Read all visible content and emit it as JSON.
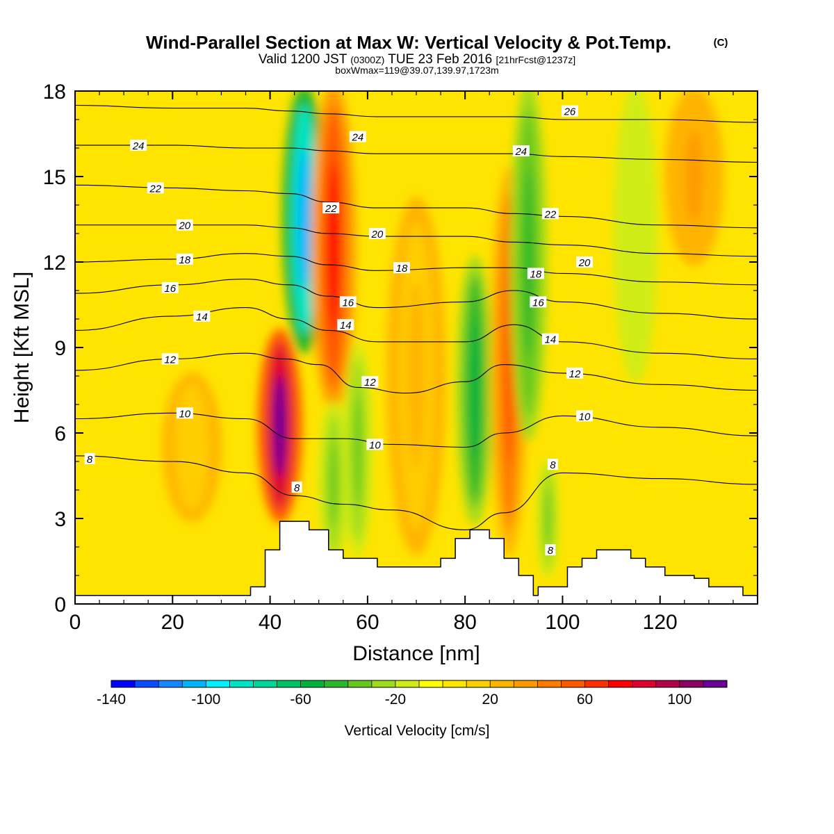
{
  "header": {
    "title_main": "Wind-Parallel Section at Max W: Vertical Velocity & Pot.Temp.",
    "title_mark": "(C)",
    "sub_a": "Valid 1200 JST",
    "sub_b": "(0300Z)",
    "sub_c": "TUE 23 Feb 2016",
    "sub_d": "[21hrFcst@1237z]",
    "sub2": "boxWmax=119@39.07,139.97,1723m"
  },
  "chart_data": {
    "type": "heatmap",
    "xlabel": "Distance [nm]",
    "ylabel": "Height [Kft MSL]",
    "xlim": [
      0,
      140
    ],
    "ylim": [
      0,
      18
    ],
    "x_ticks": [
      0,
      20,
      40,
      60,
      80,
      100,
      120
    ],
    "y_ticks": [
      0,
      3,
      6,
      9,
      12,
      15,
      18
    ],
    "colorbar": {
      "label": "Vertical Velocity [cm/s]",
      "min": -140,
      "max": 120,
      "step": 10,
      "tick_values": [
        -140,
        -100,
        -60,
        -20,
        20,
        60,
        100
      ],
      "colors": [
        "#0000ff",
        "#0a4cff",
        "#1486ff",
        "#00b4ff",
        "#00f0ff",
        "#00e4c4",
        "#00d696",
        "#00c46a",
        "#00b23c",
        "#2ab82a",
        "#66c81e",
        "#9edb1e",
        "#d0ec19",
        "#ffff00",
        "#ffe400",
        "#ffce00",
        "#ffb400",
        "#ff9a00",
        "#ff7a00",
        "#ff5a00",
        "#ff3000",
        "#ff0000",
        "#dd0030",
        "#b40046",
        "#8c0064",
        "#680096"
      ]
    },
    "vertical_velocity_features": [
      {
        "x": 42,
        "z_bottom": 3,
        "z_top": 9.5,
        "width": 3,
        "peak": 119
      },
      {
        "x": 47,
        "z_bottom": 9,
        "z_top": 18,
        "width": 3,
        "peak": -110
      },
      {
        "x": 53,
        "z_bottom": 7,
        "z_top": 18,
        "width": 3,
        "peak": 75
      },
      {
        "x": 58,
        "z_bottom": 1.8,
        "z_top": 9,
        "width": 2,
        "peak": -40
      },
      {
        "x": 53,
        "z_bottom": 1.5,
        "z_top": 7,
        "width": 2,
        "peak": -35
      },
      {
        "x": 82,
        "z_bottom": 3,
        "z_top": 12,
        "width": 2.5,
        "peak": -55
      },
      {
        "x": 89,
        "z_bottom": 2,
        "z_top": 15,
        "width": 2.5,
        "peak": 55
      },
      {
        "x": 93,
        "z_bottom": 6,
        "z_top": 18,
        "width": 2.5,
        "peak": -50
      },
      {
        "x": 97,
        "z_bottom": 1,
        "z_top": 5,
        "width": 1.5,
        "peak": -35
      },
      {
        "x": 115,
        "z_bottom": 8,
        "z_top": 18,
        "width": 3,
        "peak": -15
      },
      {
        "x": 70,
        "z_bottom": 2,
        "z_top": 14,
        "width": 4,
        "peak": 22
      },
      {
        "x": 24,
        "z_bottom": 3,
        "z_top": 8,
        "width": 4,
        "peak": 18
      },
      {
        "x": 127,
        "z_bottom": 12,
        "z_top": 18,
        "width": 4,
        "peak": 30
      }
    ],
    "terrain": [
      {
        "x0": 0,
        "x1": 36,
        "h": 0.3
      },
      {
        "x0": 36,
        "x1": 39,
        "h": 0.6
      },
      {
        "x0": 39,
        "x1": 42,
        "h": 1.9
      },
      {
        "x0": 42,
        "x1": 48,
        "h": 2.9
      },
      {
        "x0": 48,
        "x1": 52,
        "h": 2.6
      },
      {
        "x0": 52,
        "x1": 55,
        "h": 1.9
      },
      {
        "x0": 55,
        "x1": 58,
        "h": 1.6
      },
      {
        "x0": 58,
        "x1": 62,
        "h": 1.6
      },
      {
        "x0": 62,
        "x1": 75,
        "h": 1.3
      },
      {
        "x0": 75,
        "x1": 78,
        "h": 1.6
      },
      {
        "x0": 78,
        "x1": 81,
        "h": 2.3
      },
      {
        "x0": 81,
        "x1": 85,
        "h": 2.6
      },
      {
        "x0": 85,
        "x1": 88,
        "h": 2.3
      },
      {
        "x0": 88,
        "x1": 91,
        "h": 1.6
      },
      {
        "x0": 91,
        "x1": 94,
        "h": 1.0
      },
      {
        "x0": 94,
        "x1": 95,
        "h": 0.3
      },
      {
        "x0": 95,
        "x1": 98,
        "h": 0.6
      },
      {
        "x0": 98,
        "x1": 101,
        "h": 0.6
      },
      {
        "x0": 101,
        "x1": 104,
        "h": 1.3
      },
      {
        "x0": 104,
        "x1": 107,
        "h": 1.6
      },
      {
        "x0": 107,
        "x1": 114,
        "h": 1.9
      },
      {
        "x0": 114,
        "x1": 117,
        "h": 1.6
      },
      {
        "x0": 117,
        "x1": 121,
        "h": 1.3
      },
      {
        "x0": 121,
        "x1": 127,
        "h": 1.0
      },
      {
        "x0": 127,
        "x1": 130,
        "h": 0.9
      },
      {
        "x0": 130,
        "x1": 137,
        "h": 0.6
      },
      {
        "x0": 137,
        "x1": 140,
        "h": 0.3
      }
    ],
    "isentropes": [
      {
        "value": 8,
        "points": [
          [
            0,
            5.2
          ],
          [
            20,
            5.0
          ],
          [
            35,
            4.6
          ],
          [
            45,
            3.8
          ],
          [
            55,
            3.5
          ],
          [
            65,
            3.3
          ],
          [
            80,
            2.6
          ],
          [
            88,
            3.2
          ],
          [
            100,
            4.6
          ],
          [
            120,
            4.4
          ],
          [
            140,
            4.2
          ]
        ]
      },
      {
        "value": 10,
        "points": [
          [
            0,
            6.5
          ],
          [
            20,
            6.7
          ],
          [
            35,
            6.5
          ],
          [
            45,
            5.8
          ],
          [
            55,
            5.8
          ],
          [
            65,
            5.6
          ],
          [
            80,
            5.5
          ],
          [
            88,
            6.0
          ],
          [
            100,
            6.6
          ],
          [
            120,
            6.2
          ],
          [
            140,
            5.9
          ]
        ]
      },
      {
        "value": 12,
        "points": [
          [
            0,
            8.2
          ],
          [
            20,
            8.6
          ],
          [
            35,
            8.8
          ],
          [
            43,
            8.6
          ],
          [
            50,
            8.4
          ],
          [
            58,
            7.6
          ],
          [
            68,
            7.4
          ],
          [
            80,
            7.8
          ],
          [
            88,
            8.4
          ],
          [
            100,
            8.1
          ],
          [
            120,
            7.7
          ],
          [
            140,
            7.5
          ]
        ]
      },
      {
        "value": 14,
        "points": [
          [
            0,
            9.6
          ],
          [
            20,
            10.1
          ],
          [
            35,
            10.4
          ],
          [
            44,
            10.0
          ],
          [
            52,
            9.6
          ],
          [
            62,
            9.2
          ],
          [
            80,
            9.2
          ],
          [
            90,
            9.8
          ],
          [
            100,
            9.2
          ],
          [
            120,
            8.8
          ],
          [
            140,
            8.6
          ]
        ]
      },
      {
        "value": 16,
        "points": [
          [
            0,
            10.9
          ],
          [
            20,
            11.2
          ],
          [
            35,
            11.4
          ],
          [
            44,
            11.2
          ],
          [
            52,
            10.8
          ],
          [
            62,
            10.4
          ],
          [
            80,
            10.6
          ],
          [
            90,
            11.0
          ],
          [
            100,
            10.6
          ],
          [
            120,
            10.2
          ],
          [
            140,
            10.0
          ]
        ]
      },
      {
        "value": 18,
        "points": [
          [
            0,
            12.0
          ],
          [
            20,
            12.1
          ],
          [
            35,
            12.3
          ],
          [
            44,
            12.2
          ],
          [
            52,
            11.9
          ],
          [
            62,
            11.7
          ],
          [
            80,
            11.8
          ],
          [
            90,
            11.8
          ],
          [
            100,
            11.6
          ],
          [
            120,
            11.3
          ],
          [
            140,
            11.2
          ]
        ]
      },
      {
        "value": 20,
        "points": [
          [
            0,
            13.3
          ],
          [
            20,
            13.3
          ],
          [
            35,
            13.3
          ],
          [
            44,
            13.2
          ],
          [
            52,
            13.0
          ],
          [
            62,
            12.9
          ],
          [
            80,
            12.9
          ],
          [
            90,
            12.7
          ],
          [
            100,
            12.6
          ],
          [
            120,
            12.3
          ],
          [
            140,
            12.2
          ]
        ]
      },
      {
        "value": 22,
        "points": [
          [
            0,
            14.7
          ],
          [
            20,
            14.6
          ],
          [
            35,
            14.5
          ],
          [
            44,
            14.4
          ],
          [
            52,
            14.1
          ],
          [
            62,
            13.9
          ],
          [
            80,
            13.9
          ],
          [
            90,
            13.7
          ],
          [
            100,
            13.6
          ],
          [
            120,
            13.3
          ],
          [
            140,
            13.2
          ]
        ]
      },
      {
        "value": 24,
        "points": [
          [
            0,
            16.1
          ],
          [
            20,
            16.1
          ],
          [
            35,
            16.0
          ],
          [
            44,
            16.0
          ],
          [
            52,
            15.9
          ],
          [
            62,
            15.8
          ],
          [
            80,
            15.8
          ],
          [
            90,
            15.8
          ],
          [
            100,
            15.7
          ],
          [
            120,
            15.6
          ],
          [
            140,
            15.5
          ]
        ]
      },
      {
        "value": 26,
        "points": [
          [
            0,
            17.5
          ],
          [
            20,
            17.4
          ],
          [
            35,
            17.4
          ],
          [
            44,
            17.3
          ],
          [
            52,
            17.2
          ],
          [
            62,
            17.1
          ],
          [
            80,
            17.1
          ],
          [
            90,
            17.1
          ],
          [
            100,
            17.0
          ],
          [
            120,
            17.0
          ],
          [
            140,
            16.9
          ]
        ]
      }
    ],
    "contour_labels": [
      {
        "text": "24",
        "x": 13,
        "y": 16.1
      },
      {
        "text": "22",
        "x": 16.5,
        "y": 14.6
      },
      {
        "text": "20",
        "x": 22.5,
        "y": 13.3
      },
      {
        "text": "18",
        "x": 22.5,
        "y": 12.1
      },
      {
        "text": "16",
        "x": 19.5,
        "y": 11.1
      },
      {
        "text": "14",
        "x": 26,
        "y": 10.1
      },
      {
        "text": "12",
        "x": 19.5,
        "y": 8.6
      },
      {
        "text": "10",
        "x": 22.5,
        "y": 6.7
      },
      {
        "text": "8",
        "x": 3,
        "y": 5.1
      },
      {
        "text": "8",
        "x": 45.5,
        "y": 4.1
      },
      {
        "text": "24",
        "x": 58,
        "y": 16.4
      },
      {
        "text": "22",
        "x": 52.5,
        "y": 13.9
      },
      {
        "text": "20",
        "x": 62,
        "y": 13.0
      },
      {
        "text": "18",
        "x": 67,
        "y": 11.8
      },
      {
        "text": "16",
        "x": 56,
        "y": 10.6
      },
      {
        "text": "14",
        "x": 55.5,
        "y": 9.8
      },
      {
        "text": "12",
        "x": 60.5,
        "y": 7.8
      },
      {
        "text": "10",
        "x": 61.5,
        "y": 5.6
      },
      {
        "text": "24",
        "x": 91.5,
        "y": 15.9
      },
      {
        "text": "22",
        "x": 97.5,
        "y": 13.7
      },
      {
        "text": "20",
        "x": 104.5,
        "y": 12.0
      },
      {
        "text": "18",
        "x": 94.5,
        "y": 11.6
      },
      {
        "text": "16",
        "x": 95,
        "y": 10.6
      },
      {
        "text": "14",
        "x": 97.5,
        "y": 9.3
      },
      {
        "text": "12",
        "x": 102.5,
        "y": 8.1
      },
      {
        "text": "10",
        "x": 104.5,
        "y": 6.6
      },
      {
        "text": "8",
        "x": 98,
        "y": 4.9
      },
      {
        "text": "26",
        "x": 101.5,
        "y": 17.3
      },
      {
        "text": "8",
        "x": 97.5,
        "y": 1.9
      }
    ]
  }
}
